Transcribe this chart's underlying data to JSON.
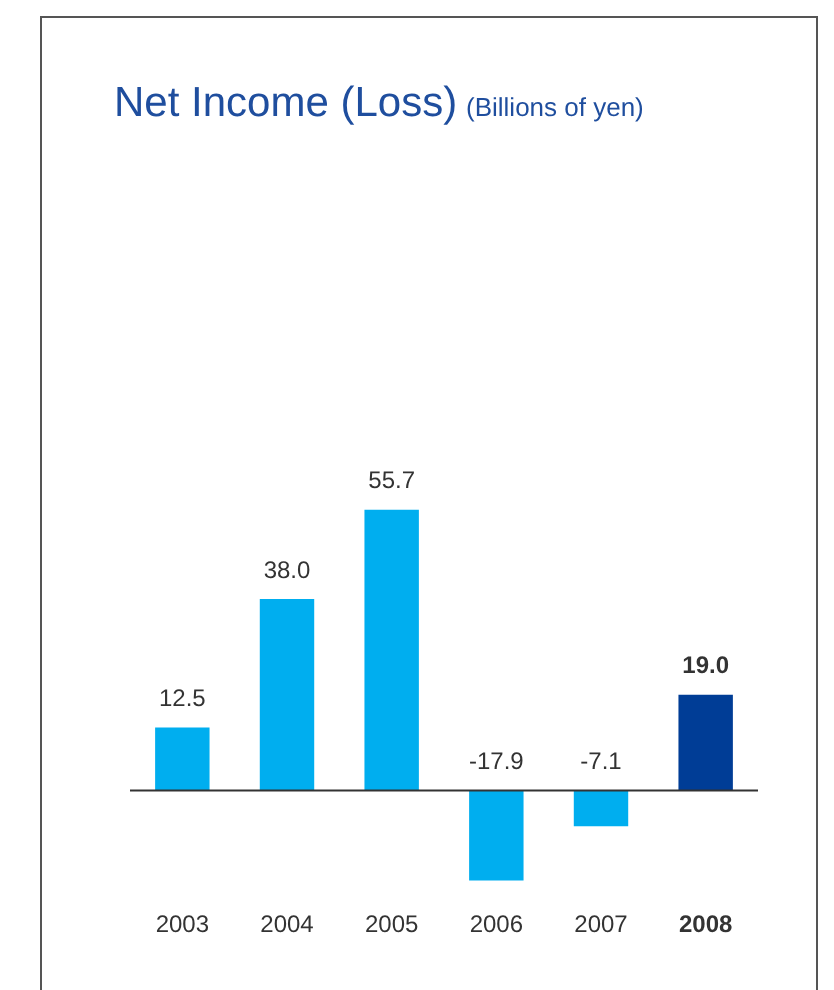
{
  "chart_data": {
    "type": "bar",
    "title": "Net Income (Loss)",
    "subtitle": "(Billions of yen)",
    "categories": [
      "2003",
      "2004",
      "2005",
      "2006",
      "2007",
      "2008"
    ],
    "values": [
      12.5,
      38.0,
      55.7,
      -17.9,
      -7.1,
      19.0
    ],
    "colors": [
      "#00aeef",
      "#00aeef",
      "#00aeef",
      "#00aeef",
      "#00aeef",
      "#003d96"
    ],
    "value_labels": [
      "12.5",
      "38.0",
      "55.7",
      "-17.9",
      "-7.1",
      "19.0"
    ],
    "grid": false,
    "legend": false
  }
}
